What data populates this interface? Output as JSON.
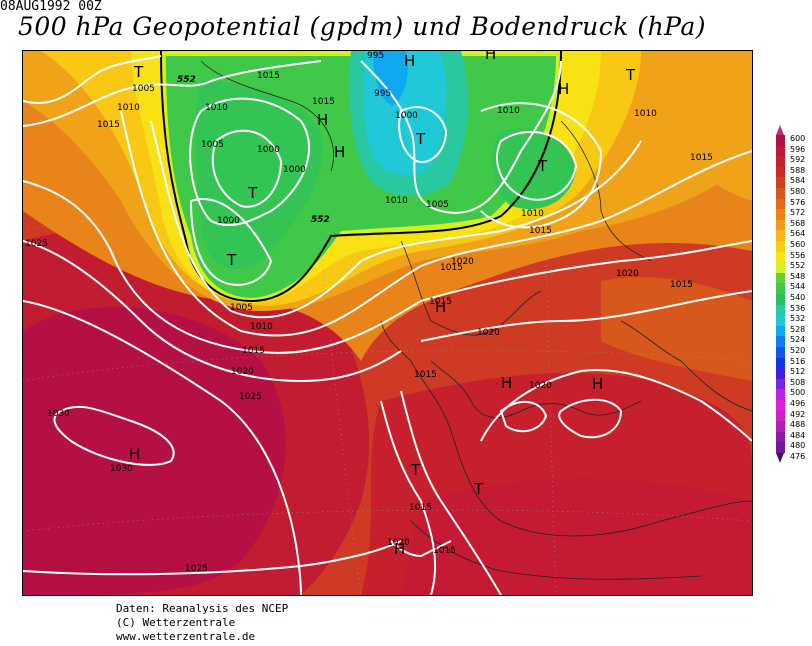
{
  "header": {
    "date": "08AUG1992 00Z",
    "title": "500 hPa Geopotential (gpdm) und Bodendruck (hPa)"
  },
  "map": {
    "pressure_labels": [
      "995",
      "995",
      "1015",
      "1005",
      "1010",
      "1015",
      "1010",
      "1005",
      "1015",
      "1000",
      "1000",
      "1000",
      "1010",
      "1010",
      "1000",
      "1005",
      "1010",
      "1015",
      "1020",
      "1015",
      "1020",
      "1020",
      "1025",
      "1005",
      "1010",
      "1015",
      "1020",
      "1025",
      "1030",
      "1030",
      "1015",
      "1020",
      "1015",
      "1025",
      "1015",
      "1020",
      "1015",
      "1015",
      "1010",
      "1015"
    ],
    "height_labels": [
      "552",
      "552"
    ],
    "systems": [
      "T",
      "T",
      "T",
      "T",
      "T",
      "T",
      "T",
      "T",
      "H",
      "H",
      "H",
      "H",
      "H",
      "H",
      "H",
      "H",
      "H",
      "H"
    ]
  },
  "legend": {
    "colors": [
      "#b40e4a",
      "#c01638",
      "#c6202c",
      "#cc2c24",
      "#d0401c",
      "#d8581c",
      "#e06c1a",
      "#e88418",
      "#f09c18",
      "#f8b418",
      "#f8cc10",
      "#f8e410",
      "#d8f020",
      "#60d038",
      "#40c848",
      "#28c060",
      "#28c8a8",
      "#20c8d8",
      "#10a8f0",
      "#1080f0",
      "#1058e8",
      "#1038e0",
      "#4020e0",
      "#8020e0",
      "#c020e0",
      "#e020d8",
      "#d020c8",
      "#b020b8",
      "#9018a8",
      "#701898"
    ],
    "values": [
      "600",
      "596",
      "592",
      "588",
      "584",
      "580",
      "576",
      "572",
      "568",
      "564",
      "560",
      "556",
      "552",
      "548",
      "544",
      "540",
      "536",
      "532",
      "528",
      "524",
      "520",
      "516",
      "512",
      "508",
      "500",
      "496",
      "492",
      "488",
      "484",
      "480",
      "476"
    ],
    "top_color": "#c02a7a",
    "bottom_color": "#4a1060"
  },
  "credits": {
    "line1": "Daten: Reanalysis des NCEP",
    "line2": "(C) Wetterzentrale",
    "line3": "www.wetterzentrale.de"
  }
}
